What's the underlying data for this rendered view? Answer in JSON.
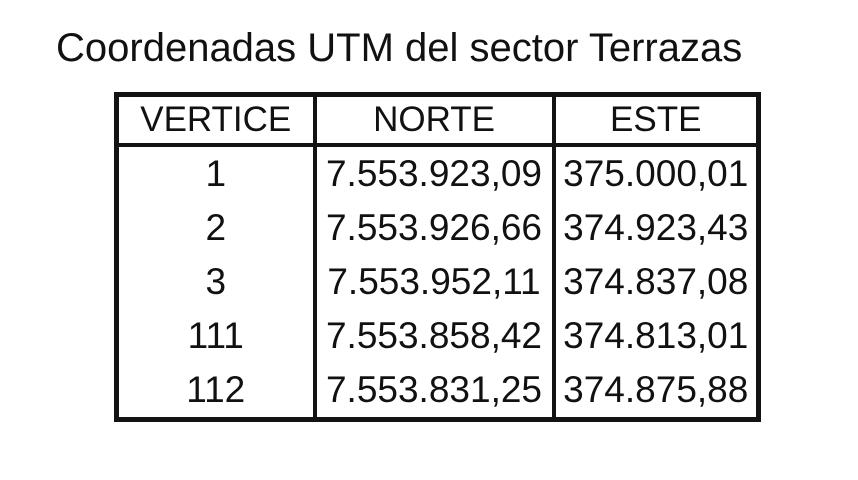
{
  "title": "Coordenadas UTM del sector Terrazas",
  "table": {
    "headers": [
      "VERTICE",
      "NORTE",
      "ESTE"
    ],
    "rows": [
      {
        "vertice": "1",
        "norte": "7.553.923,09",
        "este": "375.000,01"
      },
      {
        "vertice": "2",
        "norte": "7.553.926,66",
        "este": "374.923,43"
      },
      {
        "vertice": "3",
        "norte": "7.553.952,11",
        "este": "374.837,08"
      },
      {
        "vertice": "111",
        "norte": "7.553.858,42",
        "este": "374.813,01"
      },
      {
        "vertice": "112",
        "norte": "7.553.831,25",
        "este": "374.875,88"
      }
    ]
  },
  "colors": {
    "text": "#111111",
    "border": "#131313",
    "background": "#ffffff"
  }
}
